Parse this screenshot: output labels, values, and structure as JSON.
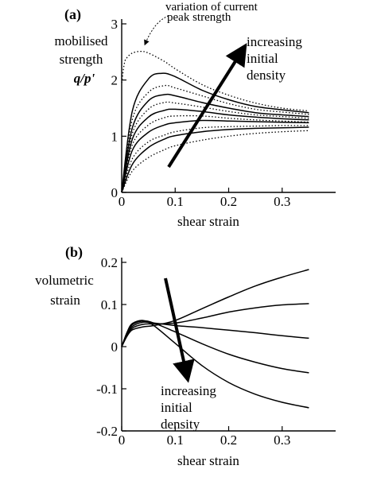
{
  "chart_data": [
    {
      "type": "line",
      "panel_label": "(a)",
      "ylabel_lines": [
        "mobilised",
        "strength",
        "q/p'"
      ],
      "xlabel": "shear strain",
      "xlim": [
        0,
        0.4
      ],
      "ylim": [
        0,
        3
      ],
      "xticks": [
        0,
        0.1,
        0.2,
        0.3
      ],
      "xtick_labels": [
        "0",
        "0.1",
        "0.2",
        "0.3"
      ],
      "yticks": [
        0,
        1,
        2,
        3
      ],
      "ytick_labels": [
        "0",
        "1",
        "2",
        "3"
      ],
      "annotations": {
        "peak_lines": [
          "variation of current",
          "peak strength"
        ],
        "trend_lines": [
          "increasing",
          "initial",
          "density"
        ]
      },
      "series": [
        {
          "style": "solid",
          "x": [
            0,
            0.02,
            0.05,
            0.08,
            0.1,
            0.15,
            0.2,
            0.25,
            0.3,
            0.35
          ],
          "y": [
            0,
            0.5,
            0.8,
            0.95,
            1.01,
            1.08,
            1.12,
            1.14,
            1.15,
            1.16
          ]
        },
        {
          "style": "solid",
          "x": [
            0,
            0.02,
            0.05,
            0.08,
            0.1,
            0.15,
            0.2,
            0.25,
            0.3,
            0.35
          ],
          "y": [
            0,
            0.75,
            1.07,
            1.2,
            1.24,
            1.28,
            1.27,
            1.26,
            1.25,
            1.24
          ]
        },
        {
          "style": "solid",
          "x": [
            0,
            0.02,
            0.05,
            0.08,
            0.1,
            0.15,
            0.2,
            0.25,
            0.3,
            0.35
          ],
          "y": [
            0,
            0.95,
            1.34,
            1.46,
            1.48,
            1.44,
            1.38,
            1.34,
            1.31,
            1.29
          ]
        },
        {
          "style": "solid",
          "x": [
            0,
            0.02,
            0.05,
            0.08,
            0.1,
            0.15,
            0.2,
            0.25,
            0.3,
            0.35
          ],
          "y": [
            0,
            1.15,
            1.63,
            1.74,
            1.72,
            1.6,
            1.5,
            1.42,
            1.38,
            1.35
          ]
        },
        {
          "style": "solid",
          "x": [
            0,
            0.02,
            0.05,
            0.075,
            0.1,
            0.15,
            0.2,
            0.25,
            0.3,
            0.35
          ],
          "y": [
            0,
            1.45,
            2.02,
            2.12,
            2.06,
            1.82,
            1.65,
            1.53,
            1.47,
            1.42
          ]
        },
        {
          "style": "dotted",
          "x": [
            0,
            0.02,
            0.05,
            0.08,
            0.1,
            0.15,
            0.2,
            0.25,
            0.3,
            0.35
          ],
          "y": [
            0,
            0.38,
            0.62,
            0.76,
            0.83,
            0.93,
            1.0,
            1.05,
            1.08,
            1.1
          ]
        },
        {
          "style": "dotted",
          "x": [
            0,
            0.02,
            0.05,
            0.08,
            0.1,
            0.15,
            0.2,
            0.25,
            0.3,
            0.35
          ],
          "y": [
            0,
            0.6,
            0.9,
            1.02,
            1.08,
            1.15,
            1.17,
            1.18,
            1.19,
            1.19
          ]
        },
        {
          "style": "dotted",
          "x": [
            0,
            0.02,
            0.05,
            0.08,
            0.1,
            0.15,
            0.2,
            0.25,
            0.3,
            0.35
          ],
          "y": [
            0,
            0.85,
            1.2,
            1.33,
            1.36,
            1.36,
            1.32,
            1.29,
            1.27,
            1.25
          ]
        },
        {
          "style": "dotted",
          "x": [
            0,
            0.02,
            0.05,
            0.08,
            0.1,
            0.15,
            0.2,
            0.25,
            0.3,
            0.35
          ],
          "y": [
            0,
            1.05,
            1.48,
            1.6,
            1.59,
            1.52,
            1.44,
            1.38,
            1.35,
            1.32
          ]
        },
        {
          "style": "dotted",
          "x": [
            0,
            0.02,
            0.05,
            0.08,
            0.1,
            0.15,
            0.2,
            0.25,
            0.3,
            0.35
          ],
          "y": [
            0,
            1.3,
            1.78,
            1.9,
            1.86,
            1.72,
            1.58,
            1.48,
            1.43,
            1.39
          ]
        },
        {
          "style": "dotted",
          "x": [
            0,
            0.005,
            0.01,
            0.02,
            0.035,
            0.05,
            0.08,
            0.1,
            0.15,
            0.2,
            0.25,
            0.3,
            0.35
          ],
          "y": [
            1.95,
            2.3,
            2.4,
            2.48,
            2.51,
            2.48,
            2.33,
            2.2,
            1.92,
            1.73,
            1.59,
            1.5,
            1.45
          ]
        }
      ]
    },
    {
      "type": "line",
      "panel_label": "(b)",
      "ylabel_lines": [
        "volumetric",
        "strain"
      ],
      "xlabel": "shear strain",
      "xlim": [
        0,
        0.4
      ],
      "ylim": [
        -0.2,
        0.2
      ],
      "xticks": [
        0,
        0.1,
        0.2,
        0.3
      ],
      "xtick_labels": [
        "0",
        "0.1",
        "0.2",
        "0.3"
      ],
      "yticks": [
        -0.2,
        -0.1,
        0,
        0.1,
        0.2
      ],
      "ytick_labels": [
        "-0.2",
        "-0.1",
        "0",
        "0.1",
        "0.2"
      ],
      "annotations": {
        "trend_lines": [
          "increasing",
          "initial",
          "density"
        ]
      },
      "series": [
        {
          "style": "solid",
          "x": [
            0,
            0.01,
            0.02,
            0.04,
            0.06,
            0.1,
            0.15,
            0.2,
            0.25,
            0.3,
            0.35
          ],
          "y": [
            0,
            0.025,
            0.04,
            0.047,
            0.05,
            0.062,
            0.09,
            0.118,
            0.144,
            0.165,
            0.183
          ]
        },
        {
          "style": "solid",
          "x": [
            0,
            0.01,
            0.02,
            0.04,
            0.06,
            0.1,
            0.15,
            0.2,
            0.25,
            0.3,
            0.35
          ],
          "y": [
            0,
            0.027,
            0.044,
            0.053,
            0.054,
            0.056,
            0.068,
            0.082,
            0.092,
            0.099,
            0.102
          ]
        },
        {
          "style": "solid",
          "x": [
            0,
            0.01,
            0.02,
            0.04,
            0.06,
            0.1,
            0.15,
            0.2,
            0.25,
            0.3,
            0.35
          ],
          "y": [
            0,
            0.03,
            0.048,
            0.058,
            0.056,
            0.05,
            0.045,
            0.039,
            0.033,
            0.026,
            0.02
          ]
        },
        {
          "style": "solid",
          "x": [
            0,
            0.01,
            0.02,
            0.04,
            0.06,
            0.1,
            0.15,
            0.2,
            0.25,
            0.3,
            0.35
          ],
          "y": [
            0,
            0.032,
            0.052,
            0.061,
            0.056,
            0.035,
            0.007,
            -0.018,
            -0.037,
            -0.052,
            -0.062
          ]
        },
        {
          "style": "solid",
          "x": [
            0,
            0.01,
            0.02,
            0.04,
            0.06,
            0.1,
            0.15,
            0.2,
            0.25,
            0.3,
            0.35
          ],
          "y": [
            0,
            0.034,
            0.055,
            0.062,
            0.05,
            0.008,
            -0.045,
            -0.085,
            -0.113,
            -0.132,
            -0.145
          ]
        }
      ]
    }
  ]
}
